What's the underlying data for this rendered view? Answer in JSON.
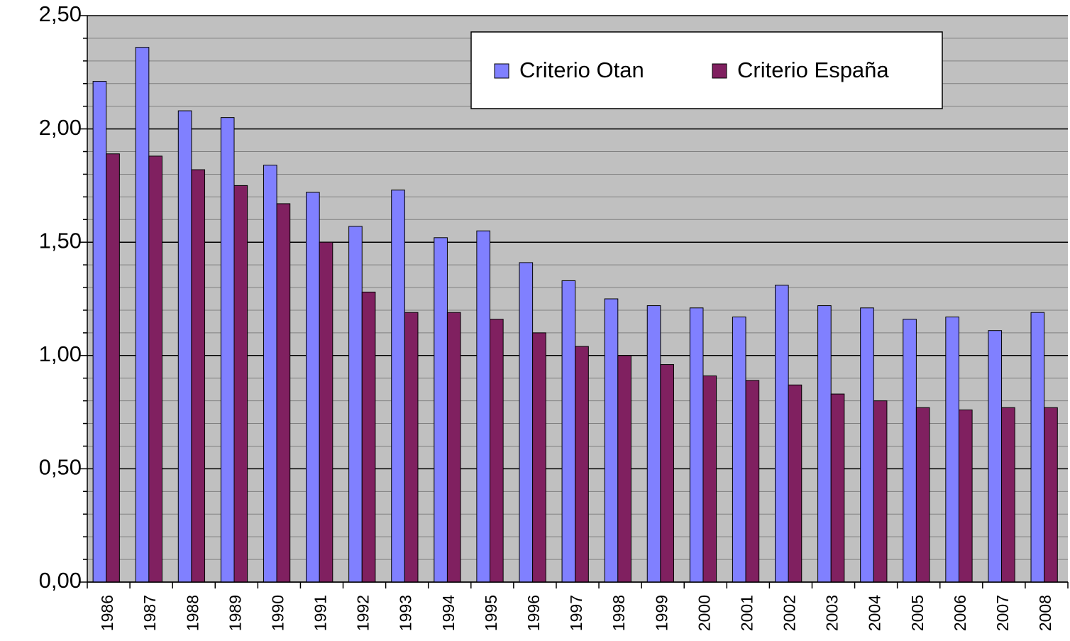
{
  "chart_data": {
    "type": "bar",
    "categories": [
      "1986",
      "1987",
      "1988",
      "1989",
      "1990",
      "1991",
      "1992",
      "1993",
      "1994",
      "1995",
      "1996",
      "1997",
      "1998",
      "1999",
      "2000",
      "2001",
      "2002",
      "2003",
      "2004",
      "2005",
      "2006",
      "2007",
      "2008"
    ],
    "series": [
      {
        "name": "Criterio Otan",
        "color": "#8080ff",
        "values": [
          2.21,
          2.36,
          2.08,
          2.05,
          1.84,
          1.72,
          1.57,
          1.73,
          1.52,
          1.55,
          1.41,
          1.33,
          1.25,
          1.22,
          1.21,
          1.17,
          1.31,
          1.22,
          1.21,
          1.16,
          1.17,
          1.11,
          1.19
        ]
      },
      {
        "name": "Criterio España",
        "color": "#802060",
        "values": [
          1.89,
          1.88,
          1.82,
          1.75,
          1.67,
          1.5,
          1.28,
          1.19,
          1.19,
          1.16,
          1.1,
          1.04,
          1.0,
          0.96,
          0.91,
          0.89,
          0.87,
          0.83,
          0.8,
          0.77,
          0.76,
          0.77,
          0.77
        ]
      }
    ],
    "ylim": [
      0,
      2.5
    ],
    "yticks": [
      {
        "value": 0,
        "label": "0,00"
      },
      {
        "value": 0.5,
        "label": "0,50"
      },
      {
        "value": 1,
        "label": "1,00"
      },
      {
        "value": 1.5,
        "label": "1,50"
      },
      {
        "value": 2,
        "label": "2,00"
      },
      {
        "value": 2.5,
        "label": "2,50"
      }
    ],
    "minor_yticks": [
      0.1,
      0.2,
      0.3,
      0.4,
      0.6,
      0.7,
      0.8,
      0.9,
      1.1,
      1.2,
      1.3,
      1.4,
      1.6,
      1.7,
      1.8,
      1.9,
      2.1,
      2.2,
      2.3,
      2.4
    ],
    "grid": true,
    "legend": "top-right",
    "background": "#c0c0c0"
  }
}
